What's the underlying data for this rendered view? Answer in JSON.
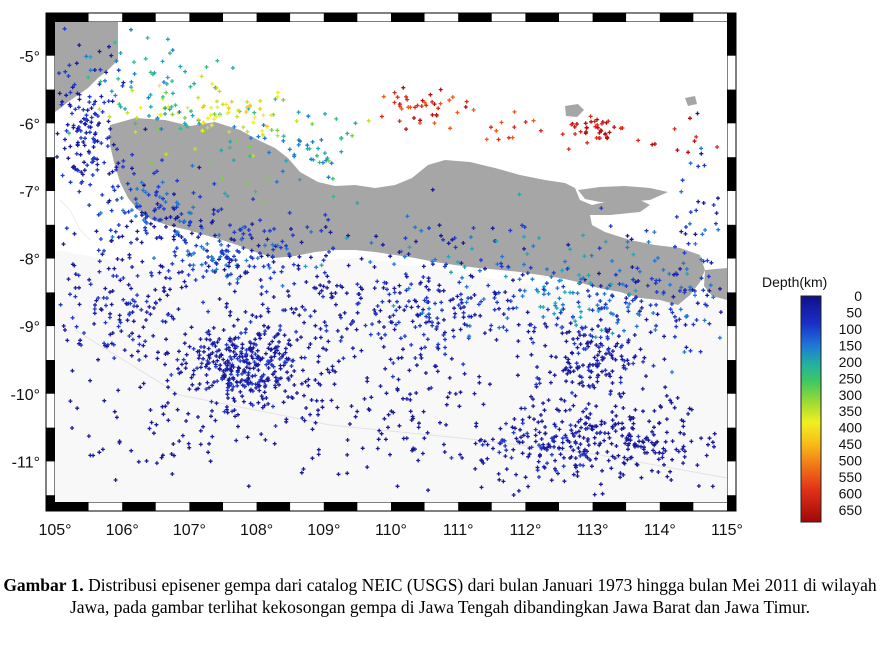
{
  "map": {
    "lon_ticks": [
      "105°",
      "106°",
      "107°",
      "108°",
      "109°",
      "110°",
      "111°",
      "112°",
      "113°",
      "114°",
      "115°"
    ],
    "lat_ticks": [
      "-5°",
      "-6°",
      "-7°",
      "-8°",
      "-9°",
      "-10°",
      "-11°"
    ],
    "lon_range": [
      105,
      115
    ],
    "lat_range": [
      -11.6,
      -4.5
    ],
    "land_color": "#a6a6a6",
    "sea_color": "#ffffff"
  },
  "colorbar": {
    "title": "Depth(km)",
    "labels": [
      "0",
      "50",
      "100",
      "150",
      "200",
      "250",
      "300",
      "350",
      "400",
      "450",
      "500",
      "550",
      "600",
      "650"
    ],
    "colors": [
      "#1a1a9e",
      "#1e3ad0",
      "#1e7ad8",
      "#20a8b8",
      "#30c080",
      "#7ad040",
      "#c8e020",
      "#f0f020",
      "#f8c818",
      "#f89018",
      "#f05818",
      "#e02818",
      "#b80c10",
      "#880808"
    ]
  },
  "caption": {
    "label": "Gambar 1.",
    "text": "Distribusi episener gempa dari catalog NEIC (USGS) dari bulan Januari 1973 hingga bulan Mei 2011 di wilayah Jawa, pada gambar terlihat kekosongan gempa di Jawa Tengah dibandingkan Jawa Barat dan Jawa Timur."
  }
}
